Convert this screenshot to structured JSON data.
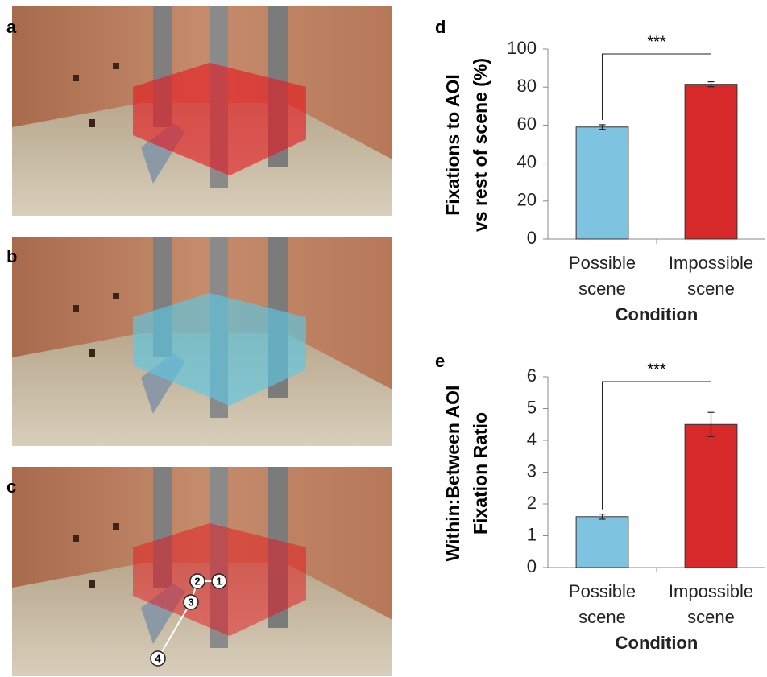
{
  "panels": [
    "a",
    "b",
    "c"
  ],
  "scanpath": [
    "1",
    "2",
    "3",
    "4"
  ],
  "chart_data": [
    {
      "type": "bar",
      "panel": "d",
      "ylabel": [
        "Fixations to AOI",
        "vs rest of scene (%)"
      ],
      "xlabel": "Condition",
      "categories": [
        "Possible scene",
        "Impossible scene"
      ],
      "values": [
        59,
        81.5
      ],
      "errors": [
        1.2,
        1.3
      ],
      "colors": [
        "#7ec3e0",
        "#d7282a"
      ],
      "ylim": [
        0,
        100
      ],
      "yticks": [
        0,
        20,
        40,
        60,
        80,
        100
      ],
      "significance": "***"
    },
    {
      "type": "bar",
      "panel": "e",
      "ylabel": [
        "Within:Between AOI",
        "Fixation Ratio"
      ],
      "xlabel": "Condition",
      "categories": [
        "Possible scene",
        "Impossible scene"
      ],
      "values": [
        1.6,
        4.5
      ],
      "errors": [
        0.08,
        0.38
      ],
      "colors": [
        "#7ec3e0",
        "#d7282a"
      ],
      "ylim": [
        0,
        6
      ],
      "yticks": [
        0,
        1,
        2,
        3,
        4,
        5,
        6
      ],
      "significance": "***"
    }
  ]
}
